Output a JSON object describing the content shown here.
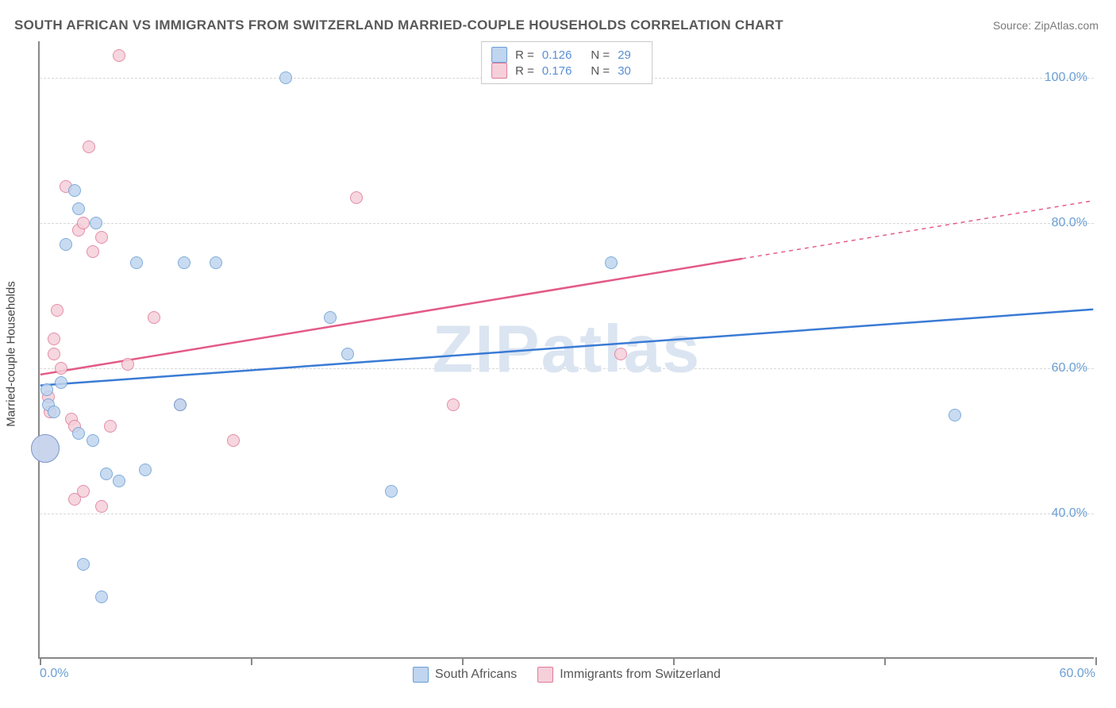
{
  "title": "SOUTH AFRICAN VS IMMIGRANTS FROM SWITZERLAND MARRIED-COUPLE HOUSEHOLDS CORRELATION CHART",
  "source": "Source: ZipAtlas.com",
  "yaxis_title": "Married-couple Households",
  "watermark": "ZIPatlas",
  "legend_top": {
    "series": [
      {
        "R_label": "R =",
        "R": "0.126",
        "N_label": "N =",
        "N": "29"
      },
      {
        "R_label": "R =",
        "R": "0.176",
        "N_label": "N =",
        "N": "30"
      }
    ]
  },
  "legend_bottom": {
    "series1_label": "South Africans",
    "series2_label": "Immigrants from Switzerland"
  },
  "chart": {
    "type": "scatter",
    "xlim": [
      0,
      60
    ],
    "ylim": [
      20,
      105
    ],
    "xtick_positions": [
      0,
      12,
      24,
      36,
      48,
      60
    ],
    "xtick_labels": [
      "0.0%",
      "",
      "",
      "",
      "",
      "60.0%"
    ],
    "ytick_positions": [
      40,
      60,
      80,
      100
    ],
    "ytick_labels": [
      "40.0%",
      "60.0%",
      "80.0%",
      "100.0%"
    ],
    "grid_color": "#d8d8d8",
    "background_color": "#ffffff",
    "axis_color": "#888888",
    "label_color": "#6a9ed4",
    "marker_radius": 8,
    "marker_stroke_width": 1.5,
    "series": [
      {
        "name": "South Africans",
        "fill": "#c0d5ef",
        "stroke": "#6a9ed4",
        "trend_color": "#3a7bd5",
        "trend_width": 2.5,
        "trend_dash": "0",
        "trend": {
          "x1": 0,
          "y1": 57.5,
          "x2": 60,
          "y2": 68
        },
        "points": [
          {
            "x": 0.3,
            "y": 49,
            "r": 18
          },
          {
            "x": 0.4,
            "y": 57
          },
          {
            "x": 0.5,
            "y": 55
          },
          {
            "x": 0.8,
            "y": 54
          },
          {
            "x": 1.2,
            "y": 58
          },
          {
            "x": 1.5,
            "y": 77
          },
          {
            "x": 2.0,
            "y": 84.5
          },
          {
            "x": 2.2,
            "y": 82
          },
          {
            "x": 2.2,
            "y": 51
          },
          {
            "x": 2.5,
            "y": 33
          },
          {
            "x": 3.0,
            "y": 50
          },
          {
            "x": 3.2,
            "y": 80
          },
          {
            "x": 3.5,
            "y": 28.5
          },
          {
            "x": 3.8,
            "y": 45.5
          },
          {
            "x": 4.5,
            "y": 44.5
          },
          {
            "x": 5.5,
            "y": 74.5
          },
          {
            "x": 6.0,
            "y": 46
          },
          {
            "x": 8.0,
            "y": 55
          },
          {
            "x": 8.2,
            "y": 74.5
          },
          {
            "x": 10.0,
            "y": 74.5
          },
          {
            "x": 14.0,
            "y": 100
          },
          {
            "x": 16.5,
            "y": 67
          },
          {
            "x": 17.5,
            "y": 62
          },
          {
            "x": 20.0,
            "y": 43
          },
          {
            "x": 32.5,
            "y": 74.5
          },
          {
            "x": 52.0,
            "y": 53.5
          }
        ]
      },
      {
        "name": "Immigrants from Switzerland",
        "fill": "#f5d0da",
        "stroke": "#e07a9a",
        "trend_color": "#e35a86",
        "trend_width": 2.5,
        "trend_dash": "0",
        "trend": {
          "x1": 0,
          "y1": 59,
          "x2": 40,
          "y2": 75
        },
        "trend_dashed_ext": {
          "x1": 40,
          "y1": 75,
          "x2": 60,
          "y2": 83
        },
        "points": [
          {
            "x": 0.3,
            "y": 49,
            "r": 18
          },
          {
            "x": 0.5,
            "y": 56
          },
          {
            "x": 0.6,
            "y": 54
          },
          {
            "x": 0.8,
            "y": 64
          },
          {
            "x": 0.8,
            "y": 62
          },
          {
            "x": 1.0,
            "y": 68
          },
          {
            "x": 1.2,
            "y": 60
          },
          {
            "x": 1.5,
            "y": 85
          },
          {
            "x": 1.8,
            "y": 53
          },
          {
            "x": 2.0,
            "y": 52
          },
          {
            "x": 2.0,
            "y": 42
          },
          {
            "x": 2.2,
            "y": 79
          },
          {
            "x": 2.5,
            "y": 80
          },
          {
            "x": 2.5,
            "y": 43
          },
          {
            "x": 2.8,
            "y": 90.5
          },
          {
            "x": 3.0,
            "y": 76
          },
          {
            "x": 3.5,
            "y": 78
          },
          {
            "x": 3.5,
            "y": 41
          },
          {
            "x": 4.0,
            "y": 52
          },
          {
            "x": 4.5,
            "y": 103
          },
          {
            "x": 5.0,
            "y": 60.5
          },
          {
            "x": 6.5,
            "y": 67
          },
          {
            "x": 8.0,
            "y": 55
          },
          {
            "x": 11.0,
            "y": 50
          },
          {
            "x": 18.0,
            "y": 83.5
          },
          {
            "x": 23.5,
            "y": 55
          },
          {
            "x": 33.0,
            "y": 62
          }
        ]
      }
    ]
  }
}
